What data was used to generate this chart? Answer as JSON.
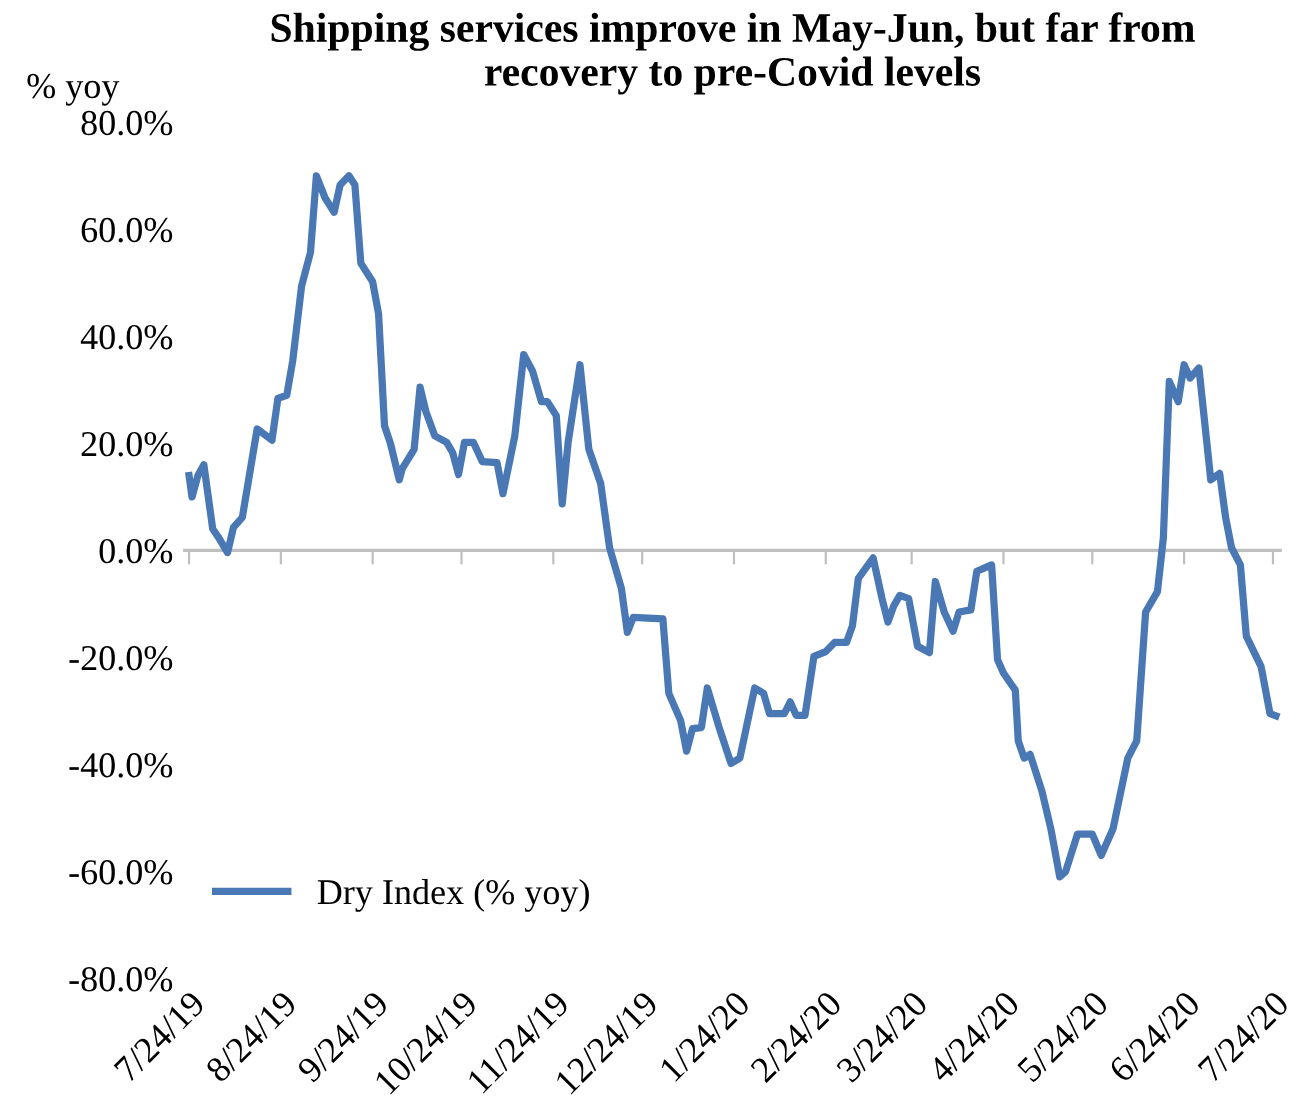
{
  "chart_data": {
    "type": "line",
    "title": "Shipping services improve in May-Jun, but far from\nrecovery to pre-Covid levels",
    "ylabel": "% yoy",
    "x": [
      "2019-07-24",
      "2019-07-25",
      "2019-07-27",
      "2019-07-29",
      "2019-08-01",
      "2019-08-03",
      "2019-08-06",
      "2019-08-08",
      "2019-08-11",
      "2019-08-16",
      "2019-08-21",
      "2019-08-23",
      "2019-08-26",
      "2019-08-28",
      "2019-08-31",
      "2019-09-03",
      "2019-09-05",
      "2019-09-08",
      "2019-09-11",
      "2019-09-13",
      "2019-09-16",
      "2019-09-18",
      "2019-09-20",
      "2019-09-24",
      "2019-09-26",
      "2019-09-28",
      "2019-09-30",
      "2019-10-03",
      "2019-10-04",
      "2019-10-08",
      "2019-10-10",
      "2019-10-12",
      "2019-10-15",
      "2019-10-19",
      "2019-10-21",
      "2019-10-23",
      "2019-10-25",
      "2019-10-28",
      "2019-10-31",
      "2019-11-05",
      "2019-11-07",
      "2019-11-11",
      "2019-11-14",
      "2019-11-17",
      "2019-11-20",
      "2019-11-22",
      "2019-11-25",
      "2019-11-27",
      "2019-11-29",
      "2019-12-03",
      "2019-12-06",
      "2019-12-10",
      "2019-12-13",
      "2019-12-17",
      "2019-12-19",
      "2019-12-21",
      "2019-12-31",
      "2020-01-02",
      "2020-01-06",
      "2020-01-08",
      "2020-01-10",
      "2020-01-13",
      "2020-01-15",
      "2020-01-19",
      "2020-01-23",
      "2020-01-26",
      "2020-01-31",
      "2020-02-03",
      "2020-02-05",
      "2020-02-10",
      "2020-02-12",
      "2020-02-14",
      "2020-02-17",
      "2020-02-20",
      "2020-02-24",
      "2020-02-27",
      "2020-03-02",
      "2020-03-04",
      "2020-03-06",
      "2020-03-11",
      "2020-03-14",
      "2020-03-16",
      "2020-03-18",
      "2020-03-20",
      "2020-03-23",
      "2020-03-26",
      "2020-03-30",
      "2020-04-01",
      "2020-04-04",
      "2020-04-07",
      "2020-04-09",
      "2020-04-13",
      "2020-04-15",
      "2020-04-20",
      "2020-04-22",
      "2020-04-24",
      "2020-04-28",
      "2020-04-29",
      "2020-05-01",
      "2020-05-03",
      "2020-05-07",
      "2020-05-10",
      "2020-05-13",
      "2020-05-15",
      "2020-05-19",
      "2020-05-24",
      "2020-05-27",
      "2020-05-31",
      "2020-06-05",
      "2020-06-08",
      "2020-06-11",
      "2020-06-15",
      "2020-06-17",
      "2020-06-19",
      "2020-06-22",
      "2020-06-24",
      "2020-06-26",
      "2020-06-29",
      "2020-07-03",
      "2020-07-06",
      "2020-07-08",
      "2020-07-10",
      "2020-07-13",
      "2020-07-15",
      "2020-07-20",
      "2020-07-23",
      "2020-07-25"
    ],
    "series": [
      {
        "name": "Dry Index (% yoy)",
        "color": "#4a78b5",
        "values": [
          14,
          10,
          14,
          16,
          4,
          2.4,
          -0.4,
          4.3,
          6.2,
          22.7,
          20.6,
          28.4,
          29,
          35.4,
          49.4,
          55.7,
          70,
          65.8,
          63.2,
          68.3,
          70,
          68.3,
          53.7,
          50.2,
          44.2,
          23.3,
          20,
          13.2,
          15.3,
          18.9,
          30.5,
          25.9,
          21.4,
          20.2,
          18.3,
          14.2,
          20.2,
          20.2,
          16.6,
          16.4,
          10.6,
          21.4,
          36.6,
          33.5,
          27.8,
          27.8,
          25.2,
          8.7,
          20.2,
          34.7,
          18.9,
          12.5,
          0.5,
          -7.1,
          -15.3,
          -12.5,
          -12.8,
          -26.7,
          -31.8,
          -37.5,
          -33.3,
          -33.1,
          -25.7,
          -33.1,
          -39.8,
          -38.8,
          -25.7,
          -26.7,
          -30.5,
          -30.5,
          -28.3,
          -30.8,
          -30.8,
          -19.8,
          -18.9,
          -17.2,
          -17.2,
          -14.1,
          -5.2,
          -1.4,
          -9,
          -13.4,
          -10.3,
          -8.4,
          -9,
          -17.9,
          -19.1,
          -5.8,
          -11.5,
          -15.1,
          -11.5,
          -11.1,
          -3.9,
          -2.7,
          -20.4,
          -22.9,
          -26.1,
          -35.6,
          -38.8,
          -38.1,
          -45,
          -52,
          -61,
          -60,
          -53,
          -53,
          -57,
          -52,
          -38.8,
          -35.6,
          -11.5,
          -7.7,
          2.4,
          31.6,
          27.8,
          34.7,
          32.2,
          34.1,
          13.2,
          14.4,
          6.2,
          0.5,
          -2.7,
          -16,
          -21.7,
          -30.5,
          -30.9
        ]
      }
    ],
    "xlim": [
      "2019-07-22",
      "2020-07-27"
    ],
    "xticks": [
      {
        "value": "2019-07-24",
        "label": "7/24/19"
      },
      {
        "value": "2019-08-24",
        "label": "8/24/19"
      },
      {
        "value": "2019-09-24",
        "label": "9/24/19"
      },
      {
        "value": "2019-10-24",
        "label": "10/24/19"
      },
      {
        "value": "2019-11-24",
        "label": "11/24/19"
      },
      {
        "value": "2019-12-24",
        "label": "12/24/19"
      },
      {
        "value": "2020-01-24",
        "label": "1/24/20"
      },
      {
        "value": "2020-02-24",
        "label": "2/24/20"
      },
      {
        "value": "2020-03-24",
        "label": "3/24/20"
      },
      {
        "value": "2020-04-24",
        "label": "4/24/20"
      },
      {
        "value": "2020-05-24",
        "label": "5/24/20"
      },
      {
        "value": "2020-06-24",
        "label": "6/24/20"
      },
      {
        "value": "2020-07-24",
        "label": "7/24/20"
      }
    ],
    "ylim": [
      -80,
      80
    ],
    "yticks": [
      {
        "value": 80,
        "label": "80.0%"
      },
      {
        "value": 60,
        "label": "60.0%"
      },
      {
        "value": 40,
        "label": "40.0%"
      },
      {
        "value": 20,
        "label": "20.0%"
      },
      {
        "value": 0,
        "label": "0.0%"
      },
      {
        "value": -20,
        "label": "-20.0%"
      },
      {
        "value": -40,
        "label": "-40.0%"
      },
      {
        "value": -60,
        "label": "-60.0%"
      },
      {
        "value": -80,
        "label": "-80.0%"
      }
    ],
    "ref_lines": [
      {
        "axis": "y",
        "value": 0,
        "color": "#bfbfbf"
      }
    ],
    "grid": false,
    "legend": "bottom left",
    "marker": "none",
    "line_style": "solid"
  }
}
